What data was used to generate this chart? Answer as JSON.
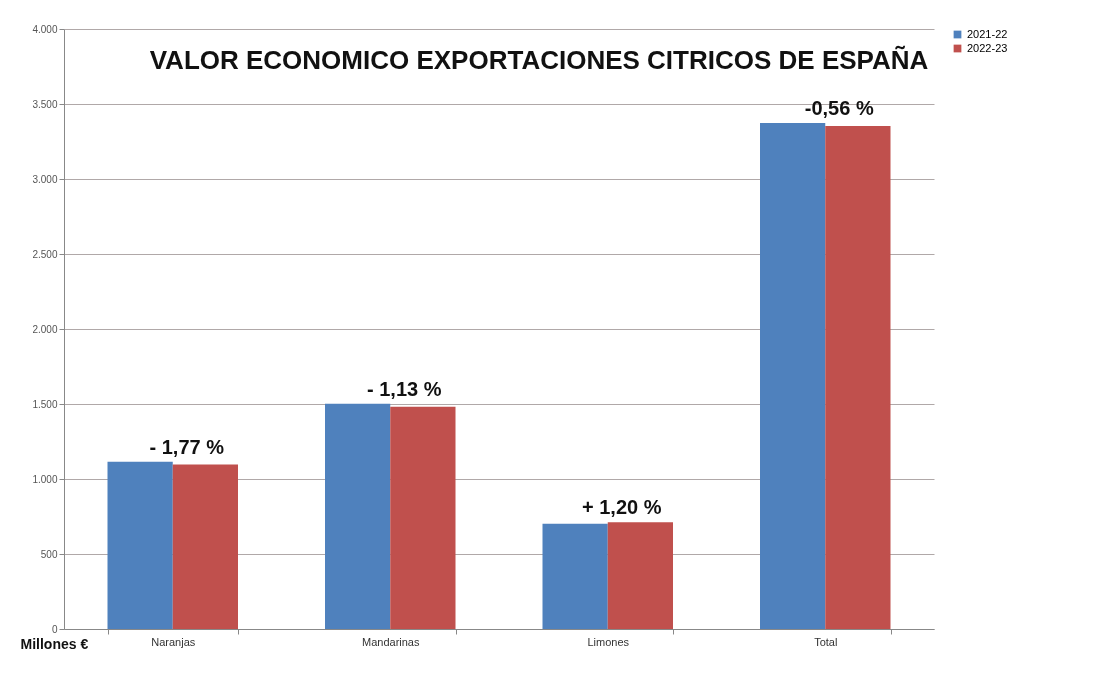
{
  "chart_data": {
    "type": "bar",
    "title": "VALOR ECONOMICO  EXPORTACIONES CITRICOS DE ESPAÑA",
    "ylabel": "Millones €",
    "categories": [
      "Naranjas",
      "Mandarinas",
      "Limones",
      "Total"
    ],
    "series": [
      {
        "name": "2021-22",
        "color": "#4f81bd",
        "values": [
          1115,
          1502,
          702,
          3374
        ]
      },
      {
        "name": "2022-23",
        "color": "#c0504d",
        "values": [
          1097,
          1481,
          712,
          3354
        ]
      }
    ],
    "ylim": [
      0,
      4000
    ],
    "yticks": [
      {
        "value": 0,
        "label": "0"
      },
      {
        "value": 500,
        "label": "500"
      },
      {
        "value": 1000,
        "label": "1.000"
      },
      {
        "value": 1500,
        "label": "1.500"
      },
      {
        "value": 2000,
        "label": "2.000"
      },
      {
        "value": 2500,
        "label": "2.500"
      },
      {
        "value": 3000,
        "label": "3.000"
      },
      {
        "value": 3500,
        "label": "3.500"
      },
      {
        "value": 4000,
        "label": "4.000"
      }
    ],
    "grid": "y",
    "legend": "right",
    "annotations": [
      {
        "text": "- 1,77 %",
        "x": "Naranjas",
        "y": 1115
      },
      {
        "text": "- 1,13 %",
        "x": "Mandarinas",
        "y": 1502
      },
      {
        "text": "+ 1,20 %",
        "x": "Limones",
        "y": 712
      },
      {
        "text": "-0,56 %",
        "x": "Total",
        "y": 3374
      }
    ]
  }
}
